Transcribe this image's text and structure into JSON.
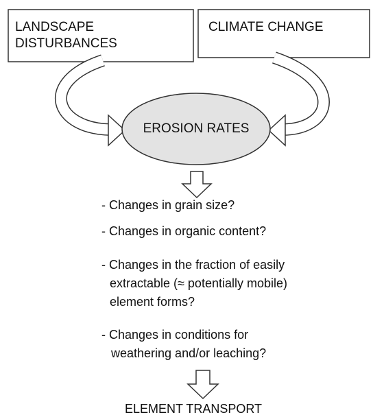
{
  "nodes": [
    {
      "lines": [
        "LANDSCAPE",
        "DISTURBANCES"
      ]
    },
    {
      "lines": [
        "CLIMATE CHANGE"
      ]
    },
    {
      "lines": [
        "EROSION RATES"
      ]
    },
    {
      "lines": [
        "ELEMENT TRANSPORT"
      ]
    }
  ],
  "items": [
    {
      "lines": [
        "- Changes in grain size?"
      ]
    },
    {
      "lines": [
        "- Changes in organic content?"
      ]
    },
    {
      "lines": [
        "- Changes in the fraction of easily",
        "extractable (≈ potentially mobile)",
        "element forms?"
      ]
    },
    {
      "lines": [
        "- Changes in conditions for",
        "weathering and/or leaching?"
      ]
    }
  ]
}
